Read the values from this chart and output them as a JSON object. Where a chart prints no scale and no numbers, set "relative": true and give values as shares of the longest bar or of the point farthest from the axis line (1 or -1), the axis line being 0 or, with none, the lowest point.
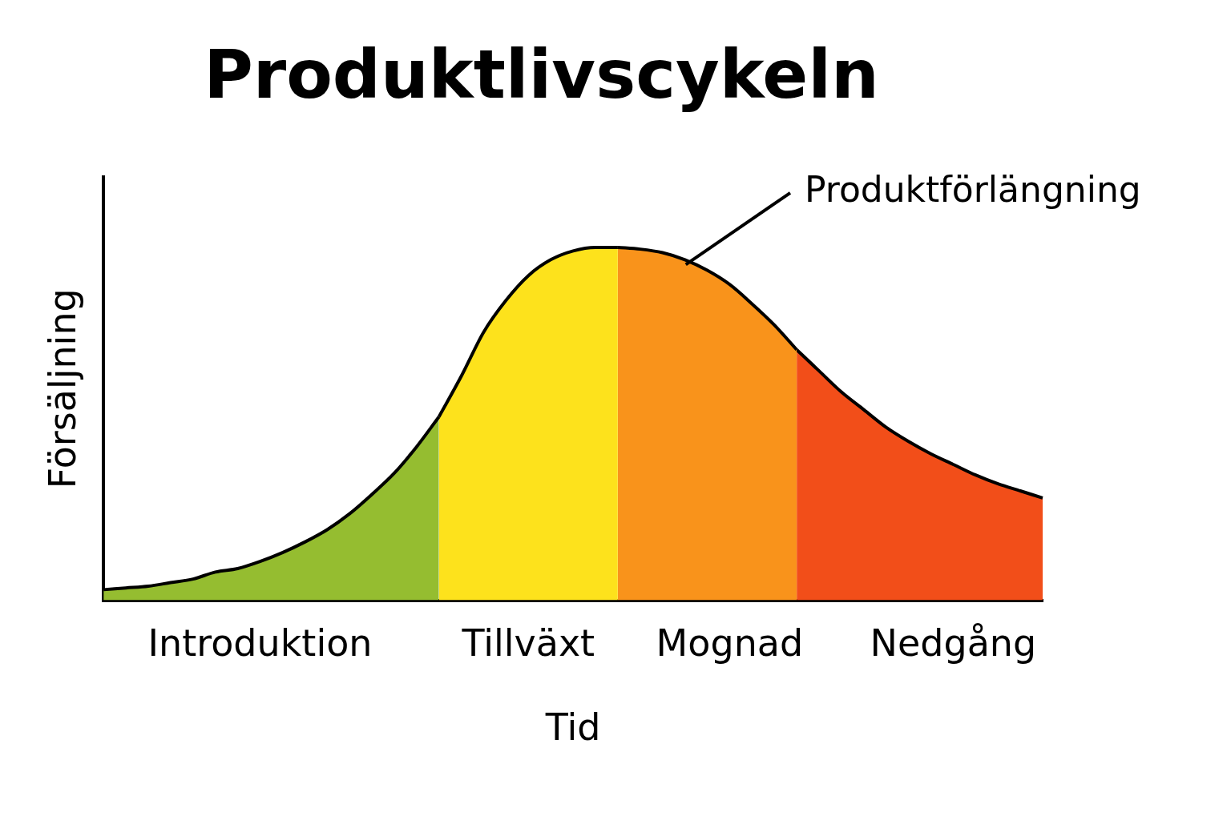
{
  "chart_data": {
    "type": "area",
    "title": "Produktlivscykeln",
    "xlabel": "Tid",
    "ylabel": "Försäljning",
    "relative": true,
    "legend": false,
    "grid": false,
    "annotations": [
      "Produktförlängning"
    ],
    "categories": [
      null,
      null,
      null,
      null,
      null,
      null,
      null,
      "Introduktion",
      null,
      null,
      null,
      null,
      null,
      null,
      null,
      null,
      null,
      null,
      null,
      "Tillväxt",
      null,
      null,
      null,
      null,
      null,
      null,
      null,
      null,
      "Mognad",
      null,
      null,
      null,
      null,
      null,
      null,
      null,
      null,
      null,
      "Nedgång",
      null,
      null,
      null,
      null
    ],
    "series": [
      {
        "color": "#95bd30",
        "values": [
          0.03,
          0.035,
          0.04,
          0.05,
          0.06,
          0.08,
          0.09,
          0.11,
          0.135,
          0.165,
          0.2,
          0.245,
          0.3,
          0.36,
          0.435,
          0.52,
          null,
          null,
          null,
          null,
          null,
          null,
          null,
          null,
          null,
          null,
          null,
          null,
          null,
          null,
          null,
          null,
          null,
          null,
          null,
          null,
          null,
          null,
          null,
          null,
          null,
          null,
          null
        ]
      },
      {
        "color": "#fde21c",
        "values": [
          null,
          null,
          null,
          null,
          null,
          null,
          null,
          null,
          null,
          null,
          null,
          null,
          null,
          null,
          null,
          0.52,
          0.635,
          0.76,
          0.85,
          0.92,
          0.965,
          0.99,
          1.0,
          1.0,
          null,
          null,
          null,
          null,
          null,
          null,
          null,
          null,
          null,
          null,
          null,
          null,
          null,
          null,
          null,
          null,
          null,
          null,
          null
        ]
      },
      {
        "color": "#f9931b",
        "values": [
          null,
          null,
          null,
          null,
          null,
          null,
          null,
          null,
          null,
          null,
          null,
          null,
          null,
          null,
          null,
          null,
          null,
          null,
          null,
          null,
          null,
          null,
          null,
          1.0,
          0.995,
          0.985,
          0.965,
          0.935,
          0.895,
          0.84,
          0.78,
          0.71,
          null,
          null,
          null,
          null,
          null,
          null,
          null,
          null,
          null,
          null,
          null
        ]
      },
      {
        "color": "#f24e19",
        "values": [
          null,
          null,
          null,
          null,
          null,
          null,
          null,
          null,
          null,
          null,
          null,
          null,
          null,
          null,
          null,
          null,
          null,
          null,
          null,
          null,
          null,
          null,
          null,
          null,
          null,
          null,
          null,
          null,
          null,
          null,
          null,
          0.71,
          0.65,
          0.59,
          0.54,
          0.49,
          0.45,
          0.415,
          0.385,
          0.355,
          0.33,
          0.31,
          0.29
        ]
      }
    ]
  }
}
